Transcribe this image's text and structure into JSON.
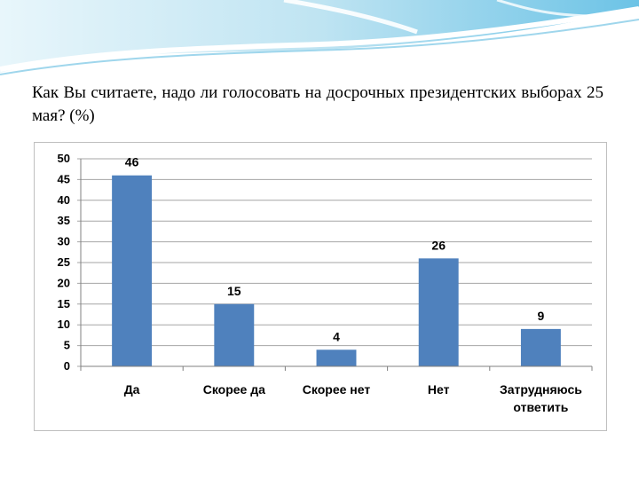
{
  "slide": {
    "question": "Как Вы считаете, надо ли голосовать на досрочных президентских выборах 25 мая? (%)"
  },
  "chart_data": {
    "type": "bar",
    "title": "",
    "xlabel": "",
    "ylabel": "",
    "categories": [
      [
        "Да"
      ],
      [
        "Скорее да"
      ],
      [
        "Скорее нет"
      ],
      [
        "Нет"
      ],
      [
        "Затрудняюсь",
        "ответить"
      ]
    ],
    "values": [
      46,
      15,
      4,
      26,
      9
    ],
    "ylim": [
      0,
      50
    ],
    "yticks": [
      0,
      5,
      10,
      15,
      20,
      25,
      30,
      35,
      40,
      45,
      50
    ],
    "grid": true,
    "legend": "none",
    "bar_color": "#4f81bd"
  }
}
